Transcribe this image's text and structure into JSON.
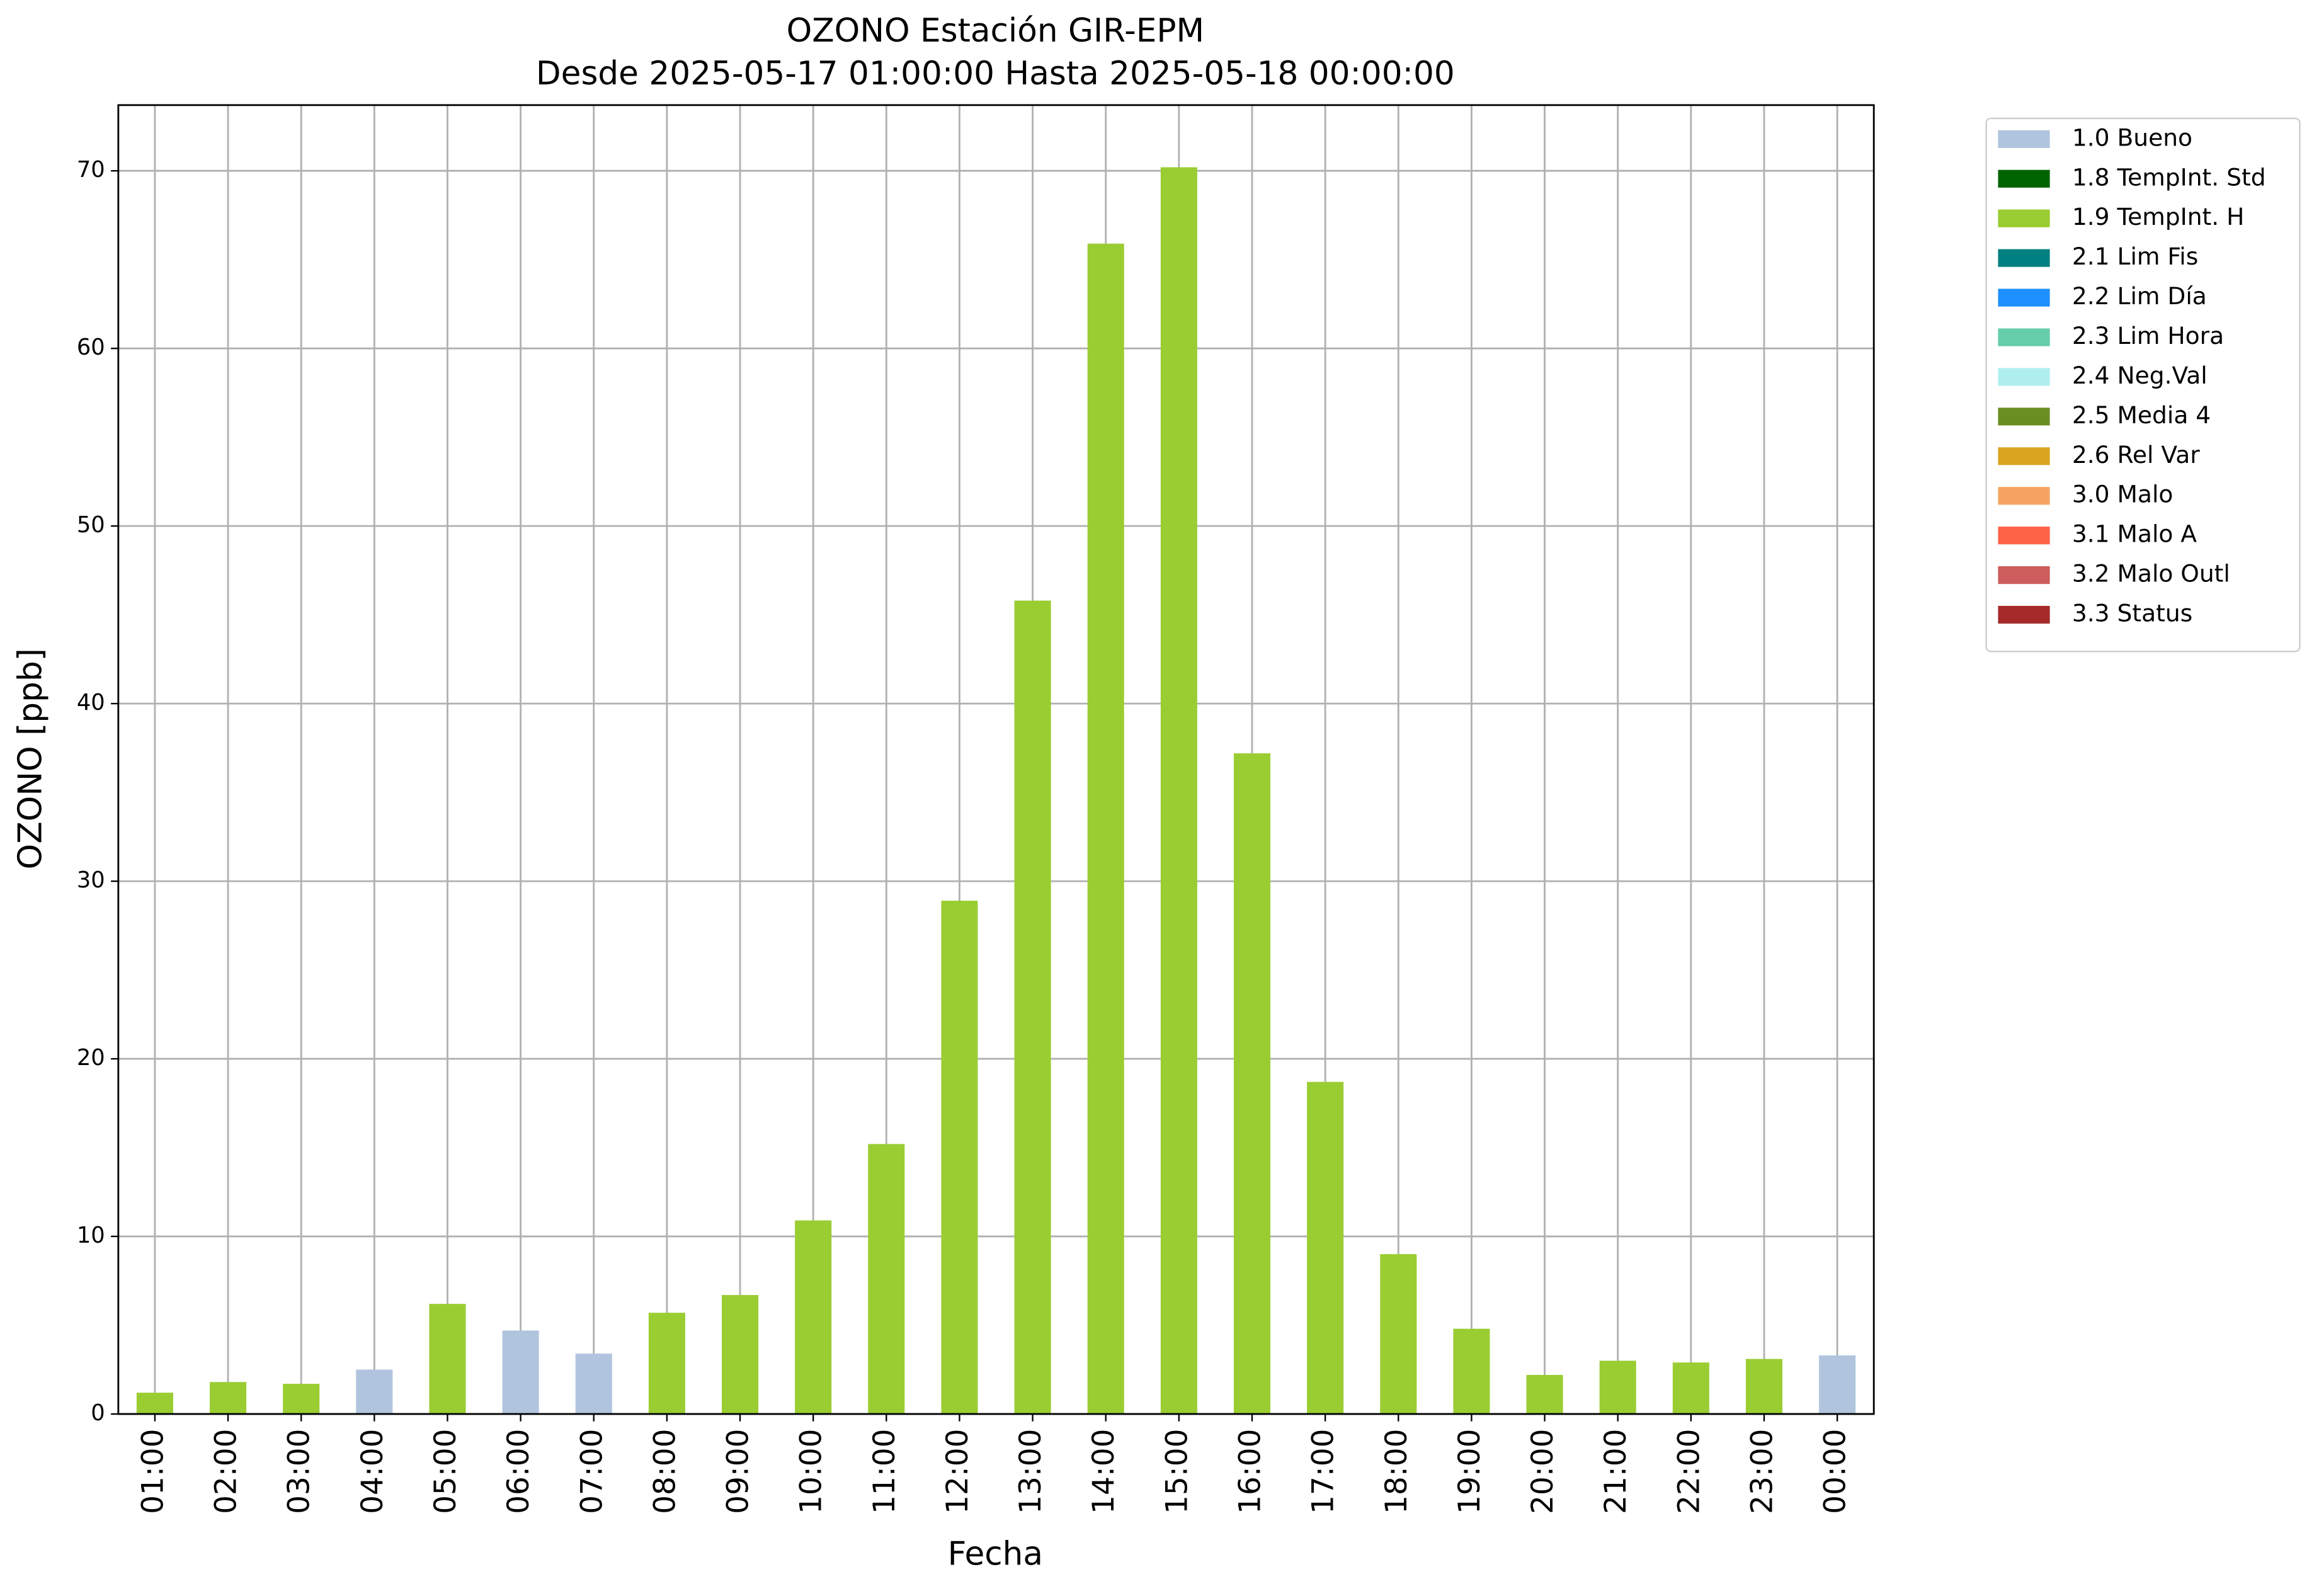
{
  "chart_data": {
    "type": "bar",
    "stacked": true,
    "title": "OZONO Estación GIR-EPM",
    "subtitle": "Desde 2025-05-17 01:00:00 Hasta 2025-05-18 00:00:00",
    "x_label": "Fecha",
    "y_label": "OZONO [ppb]",
    "categories": [
      "01:00",
      "02:00",
      "03:00",
      "04:00",
      "05:00",
      "06:00",
      "07:00",
      "08:00",
      "09:00",
      "10:00",
      "11:00",
      "12:00",
      "13:00",
      "14:00",
      "15:00",
      "16:00",
      "17:00",
      "18:00",
      "19:00",
      "20:00",
      "21:00",
      "22:00",
      "23:00",
      "00:00"
    ],
    "series": [
      {
        "name": "1.0 Bueno",
        "color": "#b0c4de",
        "values": [
          null,
          null,
          null,
          2.5,
          null,
          4.7,
          3.4,
          null,
          null,
          null,
          null,
          null,
          null,
          null,
          null,
          null,
          null,
          null,
          null,
          null,
          null,
          null,
          null,
          3.3
        ]
      },
      {
        "name": "1.8 TempInt. Std",
        "color": "#006400",
        "values": [
          null,
          null,
          null,
          null,
          null,
          null,
          null,
          null,
          null,
          null,
          null,
          null,
          null,
          null,
          null,
          null,
          null,
          null,
          null,
          null,
          null,
          null,
          null,
          null
        ]
      },
      {
        "name": "1.9 TempInt. H",
        "color": "#9acd32",
        "values": [
          1.2,
          1.8,
          1.7,
          null,
          6.2,
          null,
          null,
          5.7,
          6.7,
          10.9,
          15.2,
          28.9,
          45.8,
          65.9,
          70.2,
          37.2,
          18.7,
          9.0,
          4.8,
          2.2,
          3.0,
          2.9,
          3.1,
          null
        ]
      },
      {
        "name": "2.1 Lim Fis",
        "color": "#008080",
        "values": [
          null,
          null,
          null,
          null,
          null,
          null,
          null,
          null,
          null,
          null,
          null,
          null,
          null,
          null,
          null,
          null,
          null,
          null,
          null,
          null,
          null,
          null,
          null,
          null
        ]
      },
      {
        "name": "2.2 Lim Día",
        "color": "#1e90ff",
        "values": [
          null,
          null,
          null,
          null,
          null,
          null,
          null,
          null,
          null,
          null,
          null,
          null,
          null,
          null,
          null,
          null,
          null,
          null,
          null,
          null,
          null,
          null,
          null,
          null
        ]
      },
      {
        "name": "2.3 Lim Hora",
        "color": "#66cdaa",
        "values": [
          null,
          null,
          null,
          null,
          null,
          null,
          null,
          null,
          null,
          null,
          null,
          null,
          null,
          null,
          null,
          null,
          null,
          null,
          null,
          null,
          null,
          null,
          null,
          null
        ]
      },
      {
        "name": "2.4 Neg.Val",
        "color": "#afeeee",
        "values": [
          null,
          null,
          null,
          null,
          null,
          null,
          null,
          null,
          null,
          null,
          null,
          null,
          null,
          null,
          null,
          null,
          null,
          null,
          null,
          null,
          null,
          null,
          null,
          null
        ]
      },
      {
        "name": "2.5 Media 4",
        "color": "#6b8e23",
        "values": [
          null,
          null,
          null,
          null,
          null,
          null,
          null,
          null,
          null,
          null,
          null,
          null,
          null,
          null,
          null,
          null,
          null,
          null,
          null,
          null,
          null,
          null,
          null,
          null
        ]
      },
      {
        "name": "2.6 Rel Var",
        "color": "#daa520",
        "values": [
          null,
          null,
          null,
          null,
          null,
          null,
          null,
          null,
          null,
          null,
          null,
          null,
          null,
          null,
          null,
          null,
          null,
          null,
          null,
          null,
          null,
          null,
          null,
          null
        ]
      },
      {
        "name": "3.0 Malo",
        "color": "#f4a460",
        "values": [
          null,
          null,
          null,
          null,
          null,
          null,
          null,
          null,
          null,
          null,
          null,
          null,
          null,
          null,
          null,
          null,
          null,
          null,
          null,
          null,
          null,
          null,
          null,
          null
        ]
      },
      {
        "name": "3.1 Malo A",
        "color": "#ff6347",
        "values": [
          null,
          null,
          null,
          null,
          null,
          null,
          null,
          null,
          null,
          null,
          null,
          null,
          null,
          null,
          null,
          null,
          null,
          null,
          null,
          null,
          null,
          null,
          null,
          null
        ]
      },
      {
        "name": "3.2 Malo Outl",
        "color": "#cd5c5c",
        "values": [
          null,
          null,
          null,
          null,
          null,
          null,
          null,
          null,
          null,
          null,
          null,
          null,
          null,
          null,
          null,
          null,
          null,
          null,
          null,
          null,
          null,
          null,
          null,
          null
        ]
      },
      {
        "name": "3.3 Status",
        "color": "#a52a2a",
        "values": [
          null,
          null,
          null,
          null,
          null,
          null,
          null,
          null,
          null,
          null,
          null,
          null,
          null,
          null,
          null,
          null,
          null,
          null,
          null,
          null,
          null,
          null,
          null,
          null
        ]
      }
    ],
    "ylim": [
      0,
      73.7
    ],
    "yticks": [
      0,
      10,
      20,
      30,
      40,
      50,
      60,
      70
    ],
    "grid": true,
    "legend": "outside-upper-right"
  }
}
